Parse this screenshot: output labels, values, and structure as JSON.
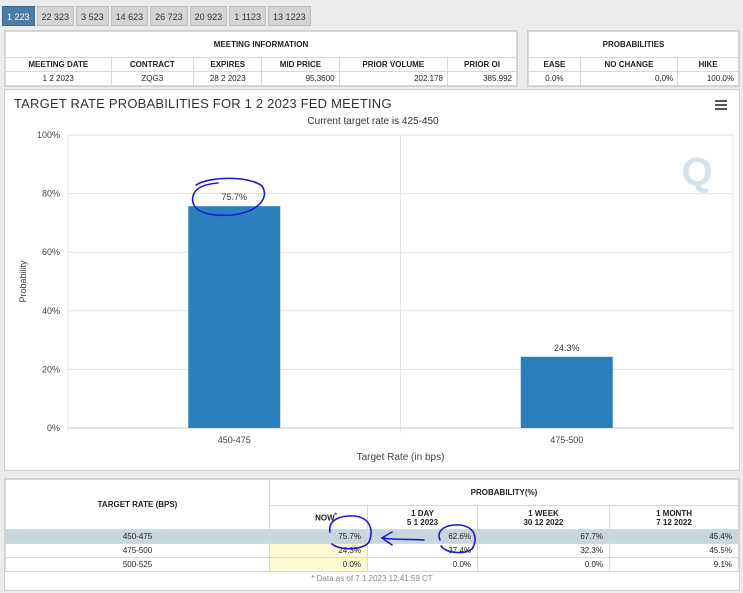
{
  "tabs": [
    "1 223",
    "22 323",
    "3 523",
    "14 623",
    "26 723",
    "20 923",
    "1 1123",
    "13 1223"
  ],
  "meeting_info": {
    "heading": "MEETING INFORMATION",
    "headers": [
      "MEETING DATE",
      "CONTRACT",
      "EXPIRES",
      "MID PRICE",
      "PRIOR VOLUME",
      "PRIOR OI"
    ],
    "values": [
      "1 2 2023",
      "ZQG3",
      "28 2 2023",
      "95.3600",
      "202.178",
      "385.992"
    ]
  },
  "probabilities_box": {
    "heading": "PROBABILITIES",
    "headers": [
      "EASE",
      "NO CHANGE",
      "HIKE"
    ],
    "values": [
      "0.0%",
      "0.0%",
      "100.0%"
    ]
  },
  "chart": {
    "title": "TARGET RATE PROBABILITIES FOR 1 2 2023 FED MEETING",
    "subtitle": "Current target rate is 425-450",
    "watermark": "Q",
    "icon": "hamburger-menu-icon"
  },
  "chart_data": {
    "type": "bar",
    "categories": [
      "450-475",
      "475-500"
    ],
    "values": [
      75.7,
      24.3
    ],
    "data_labels": [
      "75.7%",
      "24.3%"
    ],
    "xlabel": "Target Rate (in bps)",
    "ylabel": "Probability",
    "ylim": [
      0,
      100
    ],
    "yticks": [
      "0%",
      "20%",
      "40%",
      "60%",
      "80%",
      "100%"
    ],
    "bar_color": "#2b7fba",
    "grid": true
  },
  "prob_table": {
    "col_header": "TARGET RATE (BPS)",
    "group_header": "PROBABILITY(%)",
    "cols": [
      {
        "label": "NOW",
        "sup": "*",
        "date": ""
      },
      {
        "label": "1 DAY",
        "date": "5 1 2023"
      },
      {
        "label": "1 WEEK",
        "date": "30 12 2022"
      },
      {
        "label": "1 MONTH",
        "date": "7 12 2022"
      }
    ],
    "rows": [
      {
        "rate": "450-475",
        "now": "75.7%",
        "day": "62.6%",
        "week": "67.7%",
        "month": "45.4%"
      },
      {
        "rate": "475-500",
        "now": "24.3%",
        "day": "37.4%",
        "week": "32.3%",
        "month": "45.5%"
      },
      {
        "rate": "500-525",
        "now": "0.0%",
        "day": "0.0%",
        "week": "0.0%",
        "month": "9.1%"
      }
    ],
    "footnote": "* Data as of 7 1 2023 12:41:59 CT"
  },
  "colors": {
    "annotation_ink": "#1a1ad6",
    "highlight_row": "#c9d6dc",
    "now_cell": "#fdfbd3"
  }
}
